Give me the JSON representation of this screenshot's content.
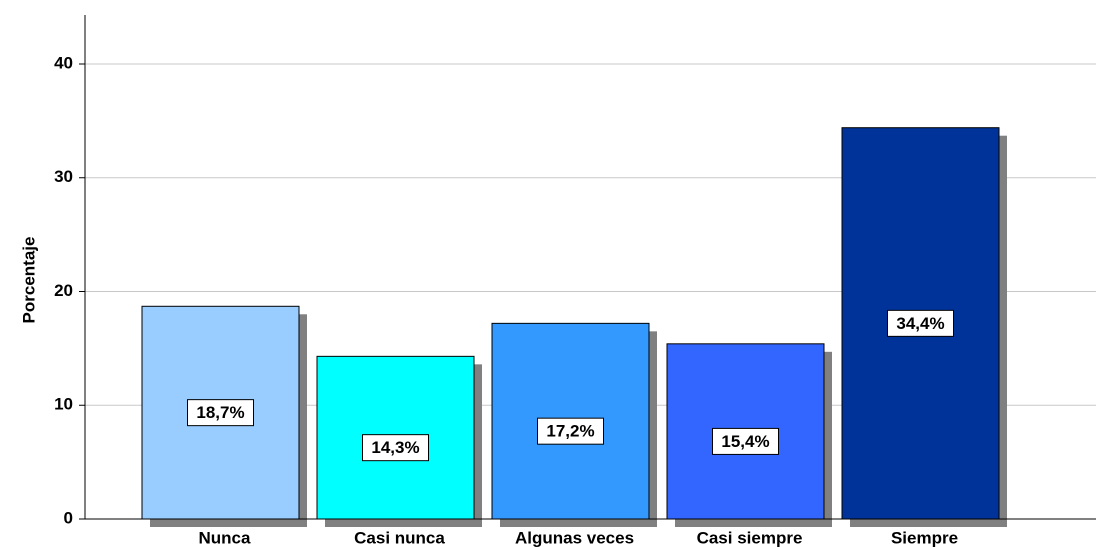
{
  "chart_data": {
    "type": "bar",
    "y_label": "Porcentaje",
    "categories": [
      "Nunca",
      "Casi nunca",
      "Algunas veces",
      "Casi siempre",
      "Siempre"
    ],
    "values": [
      18.7,
      14.3,
      17.2,
      15.4,
      34.4
    ],
    "value_labels": [
      "18,7%",
      "14,3%",
      "17,2%",
      "15,4%",
      "34,4%"
    ],
    "colors": [
      "#99ccff",
      "#00ffff",
      "#3399ff",
      "#3366ff",
      "#003399"
    ],
    "ylim": [
      0,
      44
    ],
    "yticks": [
      0,
      10,
      20,
      30,
      40
    ],
    "grid": true
  }
}
